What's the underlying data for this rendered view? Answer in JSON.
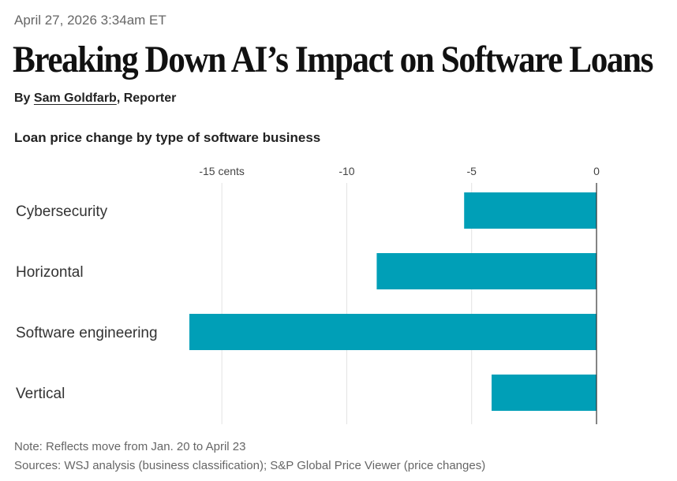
{
  "article": {
    "dateline": "April 27, 2026 3:34am ET",
    "headline": "Breaking Down AI’s Impact on Software Loans",
    "byline_prefix": "By",
    "author": "Sam Goldfarb",
    "author_role": ", Reporter"
  },
  "chart_data": {
    "type": "bar",
    "orientation": "horizontal",
    "title": "Loan price change by type of software business",
    "categories": [
      "Cybersecurity",
      "Horizontal",
      "Software engineering",
      "Vertical"
    ],
    "values": [
      -5.3,
      -8.8,
      -16.3,
      -4.2
    ],
    "xlim": [
      -16.3,
      0
    ],
    "ticks": [
      -15,
      -10,
      -5,
      0
    ],
    "tick_labels": [
      "-15 cents",
      "-10",
      "-5",
      "0"
    ],
    "grid": true,
    "bar_color": "#009fb7",
    "note": "Note: Reflects move from Jan. 20 to April 23",
    "sources": "Sources: WSJ analysis (business classification); S&P Global Price Viewer (price changes)"
  }
}
